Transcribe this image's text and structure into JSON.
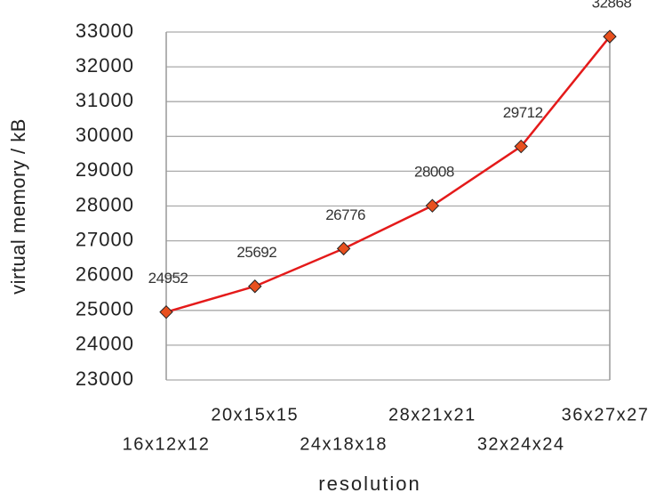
{
  "chart_data": {
    "type": "line",
    "x_label": "resolution",
    "y_label": "virtual memory / kB",
    "categories": [
      "16x12x12",
      "20x15x15",
      "24x18x18",
      "28x21x21",
      "32x24x24",
      "36x27x27"
    ],
    "series": [
      {
        "name": "virtual memory",
        "color": "#e41a1a",
        "marker_color": "#e8501e",
        "values": [
          24952,
          25692,
          26776,
          28008,
          29712,
          32868
        ]
      }
    ],
    "ylim": [
      23000,
      33000
    ],
    "yticks": [
      23000,
      24000,
      25000,
      26000,
      27000,
      28000,
      29000,
      30000,
      31000,
      32000,
      33000
    ],
    "grid": true
  }
}
